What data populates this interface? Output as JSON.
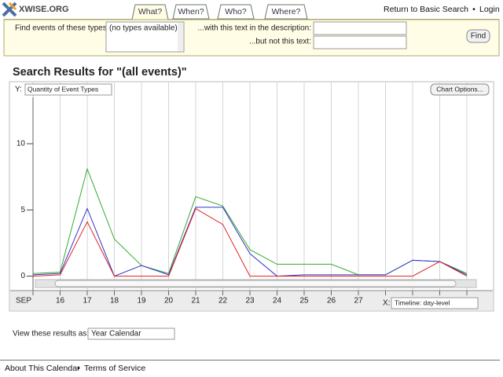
{
  "header": {
    "logo": "XWISE.ORG",
    "tabs": [
      "What?",
      "When?",
      "Who?",
      "Where?"
    ],
    "links": [
      "Return to Basic Search",
      "Login"
    ],
    "separator": "•"
  },
  "search": {
    "types_label": "Find events of these types:",
    "types_option": "(no types available)",
    "include_label": "...with this text in the description:",
    "exclude_label": "...but not this text:",
    "button": "Find"
  },
  "results_title": "Search Results for \"(all events)\"",
  "chart_data": {
    "type": "line",
    "y_control_label": "Y:",
    "y_select": "Quantity of Event Types",
    "options_button": "Chart Options...",
    "x_control_label": "X:",
    "x_select": "Timeline: day-level",
    "categories": [
      "SEP",
      "16",
      "17",
      "18",
      "19",
      "20",
      "21",
      "22",
      "23",
      "24",
      "25",
      "26",
      "27",
      null,
      null,
      null,
      null
    ],
    "series": [
      {
        "color": "#33aa33",
        "values": [
          0.2,
          0.3,
          8.1,
          2.8,
          0.8,
          0.2,
          6.0,
          5.3,
          2.0,
          0.9,
          0.9,
          0.9,
          0.1,
          0.1,
          1.2,
          1.1,
          0.2
        ]
      },
      {
        "color": "#3333cc",
        "values": [
          0.1,
          0.2,
          5.1,
          0,
          0.8,
          0.1,
          5.2,
          5.2,
          1.7,
          0,
          0.1,
          0.1,
          0.1,
          0.1,
          1.2,
          1.1,
          0.1
        ]
      },
      {
        "color": "#dd2222",
        "values": [
          0,
          0.1,
          4.1,
          0,
          0,
          0,
          5.1,
          3.9,
          0,
          0,
          0,
          0,
          0,
          0,
          0,
          1.1,
          0
        ]
      }
    ],
    "ylim": [
      -0.5,
      13.5
    ],
    "yticks": [
      0,
      5,
      10
    ],
    "grid": true
  },
  "view": {
    "label": "View these results as:",
    "select": "Year Calendar"
  },
  "footer": {
    "links": [
      "About This Calendar",
      "Terms of Service"
    ],
    "separator": "•"
  }
}
